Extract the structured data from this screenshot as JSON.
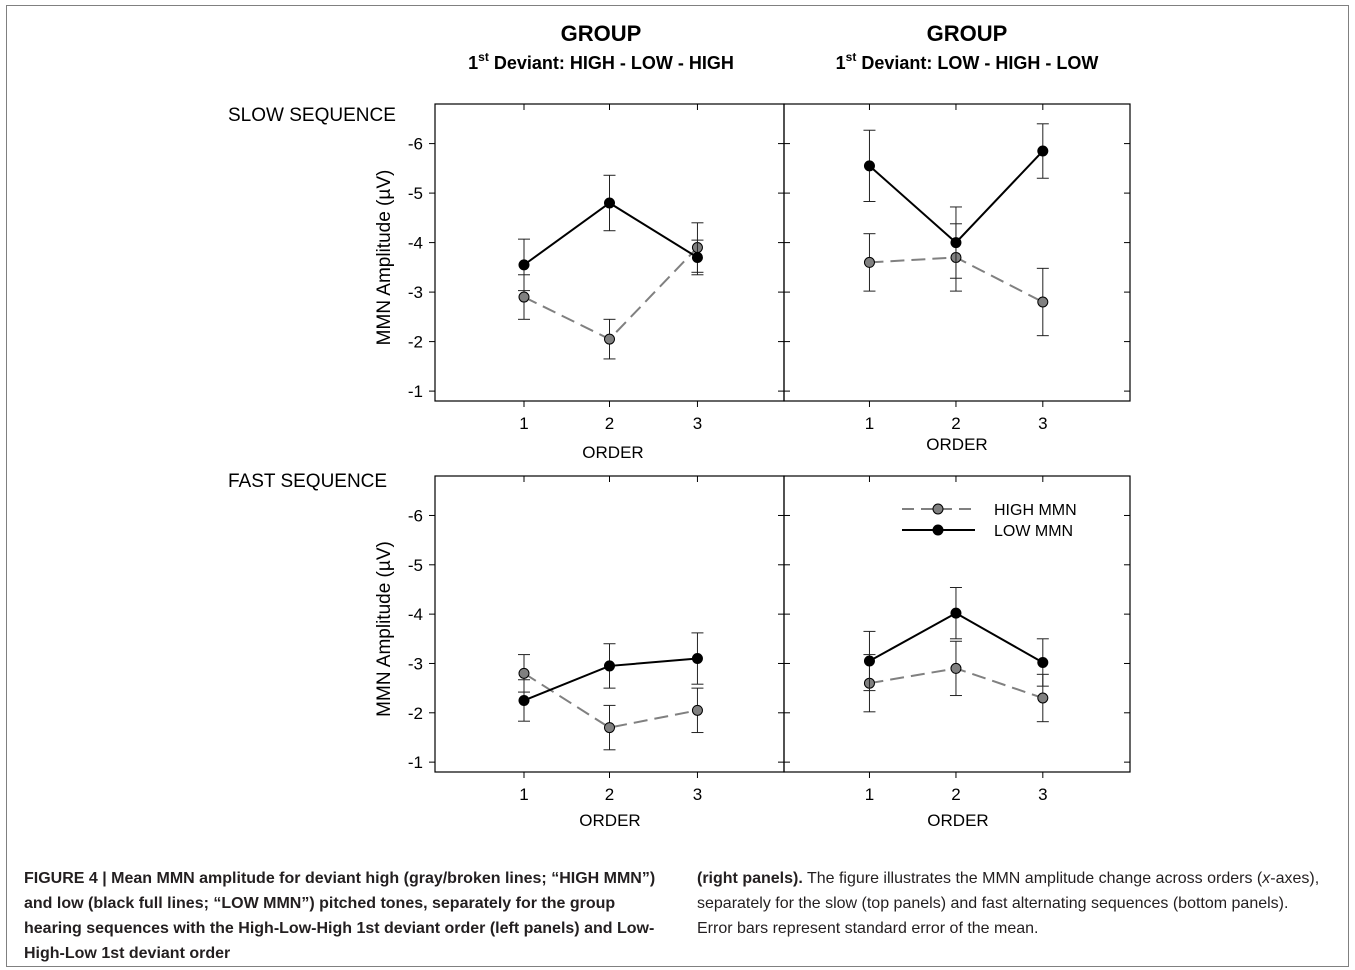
{
  "figure": {
    "group_left": {
      "title": "GROUP",
      "subtitle_prefix": "1",
      "subtitle_sup": "st",
      "subtitle_rest": " Deviant: HIGH - LOW - HIGH"
    },
    "group_right": {
      "title": "GROUP",
      "subtitle_prefix": "1",
      "subtitle_sup": "st",
      "subtitle_rest": " Deviant: LOW - HIGH - LOW"
    },
    "row_labels": [
      "SLOW SEQUENCE",
      "FAST SEQUENCE"
    ]
  },
  "caption": {
    "left_bold": "FIGURE 4 | Mean MMN amplitude for deviant high (gray/broken lines; “HIGH MMN”) and low (black full lines; “LOW MMN”) pitched tones, separately for the group hearing sequences with the High-Low-High 1st deviant order (left panels) and Low-High-Low 1st deviant order",
    "right_bold": "(right panels).",
    "right_text_1": " The figure illustrates the MMN amplitude change across orders (",
    "right_italic": "x",
    "right_text_2": "-axes), separately for the slow (top panels) and fast alternating sequences (bottom panels). Error bars represent standard error of the mean."
  },
  "chart_data": [
    {
      "type": "line",
      "panel": "slow-left",
      "ylabel": "MMN Amplitude (µV)",
      "xlabel": "ORDER",
      "x": [
        1,
        2,
        3
      ],
      "yticks": [
        -6,
        -5,
        -4,
        -3,
        -2,
        -1
      ],
      "ylim": [
        -0.8,
        -6.8
      ],
      "series": [
        {
          "name": "HIGH MMN",
          "color": "#808080",
          "dashed": true,
          "values": [
            -2.9,
            -2.05,
            -3.9
          ],
          "errors": [
            0.45,
            0.4,
            0.5
          ]
        },
        {
          "name": "LOW MMN",
          "color": "#000000",
          "dashed": false,
          "values": [
            -3.55,
            -4.8,
            -3.7
          ],
          "errors": [
            0.52,
            0.56,
            0.35
          ]
        }
      ]
    },
    {
      "type": "line",
      "panel": "slow-right",
      "xlabel": "ORDER",
      "x": [
        1,
        2,
        3
      ],
      "ylim": [
        -0.8,
        -6.8
      ],
      "series": [
        {
          "name": "HIGH MMN",
          "color": "#808080",
          "dashed": true,
          "values": [
            -3.6,
            -3.7,
            -2.8
          ],
          "errors": [
            0.58,
            0.68,
            0.68
          ]
        },
        {
          "name": "LOW MMN",
          "color": "#000000",
          "dashed": false,
          "values": [
            -5.55,
            -4.0,
            -5.85
          ],
          "errors": [
            0.72,
            0.72,
            0.55
          ]
        }
      ]
    },
    {
      "type": "line",
      "panel": "fast-left",
      "ylabel": "MMN Amplitude (µV)",
      "xlabel": "ORDER",
      "x": [
        1,
        2,
        3
      ],
      "yticks": [
        -6,
        -5,
        -4,
        -3,
        -2,
        -1
      ],
      "ylim": [
        -0.8,
        -6.8
      ],
      "series": [
        {
          "name": "HIGH MMN",
          "color": "#808080",
          "dashed": true,
          "values": [
            -2.8,
            -1.7,
            -2.05
          ],
          "errors": [
            0.38,
            0.45,
            0.45
          ]
        },
        {
          "name": "LOW MMN",
          "color": "#000000",
          "dashed": false,
          "values": [
            -2.25,
            -2.95,
            -3.1
          ],
          "errors": [
            0.42,
            0.45,
            0.52
          ]
        }
      ]
    },
    {
      "type": "line",
      "panel": "fast-right",
      "xlabel": "ORDER",
      "x": [
        1,
        2,
        3
      ],
      "ylim": [
        -0.8,
        -6.8
      ],
      "legend": "top-right",
      "series": [
        {
          "name": "HIGH MMN",
          "color": "#808080",
          "dashed": true,
          "values": [
            -2.6,
            -2.9,
            -2.3
          ],
          "errors": [
            0.58,
            0.55,
            0.48
          ]
        },
        {
          "name": "LOW MMN",
          "color": "#000000",
          "dashed": false,
          "values": [
            -3.05,
            -4.02,
            -3.02
          ],
          "errors": [
            0.6,
            0.52,
            0.48
          ]
        }
      ]
    }
  ]
}
